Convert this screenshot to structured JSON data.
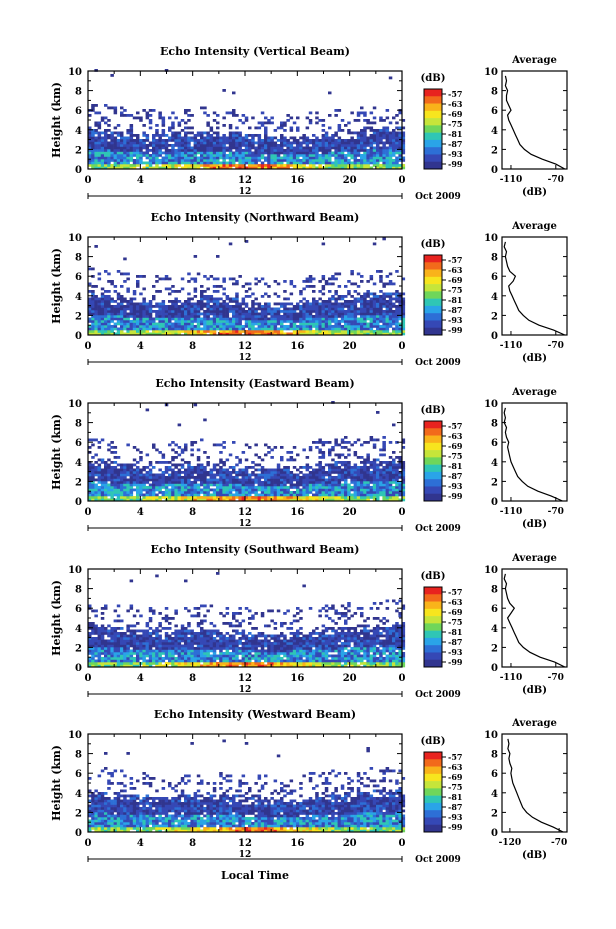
{
  "colorbar": {
    "unit": "(dB)",
    "labels": [
      "-57",
      "-63",
      "-69",
      "-75",
      "-81",
      "-87",
      "-93",
      "-99"
    ],
    "colors": [
      "#e8231f",
      "#f26a1b",
      "#f9b31a",
      "#f7e51e",
      "#c6e53a",
      "#6fd65a",
      "#2fc6b5",
      "#2aa4e8",
      "#2d6fd6",
      "#3548b5",
      "#31358f"
    ]
  },
  "panel_common": {
    "date_label": "Oct 2009",
    "noon_label": "12",
    "y_ticks": [
      "0",
      "2",
      "4",
      "6",
      "8",
      "10"
    ],
    "x_ticks": [
      "0",
      "4",
      "8",
      "12",
      "16",
      "20",
      "0"
    ]
  },
  "xlabel": "Local Time",
  "panels": [
    {
      "title": "Echo Intensity (Vertical Beam)",
      "ylabel": "Height (km)",
      "avg_title": "Average",
      "avg_xlabel": "(dB)",
      "avg_xticks": [
        "-110",
        "-70"
      ]
    },
    {
      "title": "Echo Intensity (Northward Beam)",
      "ylabel": "Height (km)",
      "avg_title": "Average",
      "avg_xlabel": "(dB)",
      "avg_xticks": [
        "-110",
        "-70"
      ]
    },
    {
      "title": "Echo Intensity (Eastward Beam)",
      "ylabel": "Height (km)",
      "avg_title": "Average",
      "avg_xlabel": "(dB)",
      "avg_xticks": [
        "-110",
        "-70"
      ]
    },
    {
      "title": "Echo Intensity (Southward Beam)",
      "ylabel": "Height (km)",
      "avg_title": "Average",
      "avg_xlabel": "(dB)",
      "avg_xticks": [
        "-110",
        "-70"
      ]
    },
    {
      "title": "Echo Intensity (Westward Beam)",
      "ylabel": "Height (km)",
      "avg_title": "Average",
      "avg_xlabel": "(dB)",
      "avg_xticks": [
        "-120",
        "-70"
      ]
    }
  ],
  "chart_data": [
    {
      "type": "heatmap",
      "title": "Echo Intensity (Vertical Beam)",
      "xlabel": "",
      "ylabel": "Height (km)",
      "xlim": [
        0,
        24
      ],
      "ylim": [
        0,
        10
      ],
      "colorbar_range": [
        -99,
        -57
      ],
      "colorbar_unit": "dB",
      "date": "Oct 2009",
      "echo_top_km": [
        4.2,
        4.0,
        3.8,
        3.6,
        3.5,
        3.5,
        3.6,
        3.7,
        3.8,
        3.8,
        3.7,
        3.6,
        3.5,
        3.4,
        3.3,
        3.2,
        3.2,
        3.3,
        3.4,
        3.5,
        3.6,
        3.8,
        4.0,
        4.1,
        4.2
      ],
      "average_profile": {
        "xlim": [
          -118,
          -60
        ],
        "height_km": [
          0,
          0.5,
          1,
          1.5,
          2,
          2.5,
          3,
          3.5,
          4,
          4.5,
          5,
          5.5,
          6,
          6.5,
          7,
          7.5,
          8,
          8.5,
          9,
          9.5
        ],
        "db": [
          -62,
          -70,
          -82,
          -92,
          -98,
          -102,
          -104,
          -106,
          -108,
          -110,
          -112,
          -113,
          -110,
          -112,
          -114,
          -114,
          -113,
          -115,
          -114,
          -115
        ]
      }
    },
    {
      "type": "heatmap",
      "title": "Echo Intensity (Northward Beam)",
      "xlabel": "",
      "ylabel": "Height (km)",
      "xlim": [
        0,
        24
      ],
      "ylim": [
        0,
        10
      ],
      "colorbar_range": [
        -99,
        -57
      ],
      "colorbar_unit": "dB",
      "date": "Oct 2009",
      "echo_top_km": [
        4.4,
        4.2,
        4.0,
        3.8,
        3.6,
        3.5,
        3.5,
        3.6,
        3.8,
        3.9,
        3.8,
        3.6,
        3.4,
        3.3,
        3.2,
        3.2,
        3.3,
        3.5,
        3.7,
        3.9,
        4.0,
        4.1,
        4.2,
        4.3,
        4.4
      ],
      "average_profile": {
        "xlim": [
          -118,
          -60
        ],
        "height_km": [
          0,
          0.5,
          1,
          1.5,
          2,
          2.5,
          3,
          3.5,
          4,
          4.5,
          5,
          5.5,
          6,
          6.5,
          7,
          7.5,
          8,
          8.5,
          9,
          9.5
        ],
        "db": [
          -62,
          -72,
          -85,
          -94,
          -99,
          -103,
          -105,
          -107,
          -109,
          -111,
          -112,
          -108,
          -106,
          -111,
          -113,
          -114,
          -115,
          -114,
          -116,
          -115
        ]
      }
    },
    {
      "type": "heatmap",
      "title": "Echo Intensity (Eastward Beam)",
      "xlabel": "",
      "ylabel": "Height (km)",
      "xlim": [
        0,
        24
      ],
      "ylim": [
        0,
        10
      ],
      "colorbar_range": [
        -99,
        -57
      ],
      "colorbar_unit": "dB",
      "date": "Oct 2009",
      "echo_top_km": [
        4.3,
        4.1,
        3.9,
        3.7,
        3.5,
        3.4,
        3.5,
        3.6,
        3.7,
        3.8,
        3.7,
        3.5,
        3.4,
        3.3,
        3.2,
        3.3,
        3.4,
        3.6,
        3.8,
        3.9,
        4.0,
        4.1,
        4.2,
        4.3,
        4.3
      ],
      "average_profile": {
        "xlim": [
          -118,
          -60
        ],
        "height_km": [
          0,
          0.5,
          1,
          1.5,
          2,
          2.5,
          3,
          3.5,
          4,
          4.5,
          5,
          5.5,
          6,
          6.5,
          7,
          7.5,
          8,
          8.5,
          9,
          9.5
        ],
        "db": [
          -64,
          -74,
          -86,
          -95,
          -100,
          -104,
          -106,
          -108,
          -110,
          -111,
          -112,
          -113,
          -112,
          -114,
          -115,
          -114,
          -116,
          -115,
          -116,
          -115
        ]
      }
    },
    {
      "type": "heatmap",
      "title": "Echo Intensity (Southward Beam)",
      "xlabel": "",
      "ylabel": "Height (km)",
      "xlim": [
        0,
        24
      ],
      "ylim": [
        0,
        10
      ],
      "colorbar_range": [
        -99,
        -57
      ],
      "colorbar_unit": "dB",
      "date": "Oct 2009",
      "echo_top_km": [
        4.4,
        4.2,
        4.0,
        3.8,
        3.7,
        3.6,
        3.6,
        3.7,
        3.8,
        3.8,
        3.7,
        3.6,
        3.5,
        3.4,
        3.4,
        3.4,
        3.5,
        3.6,
        3.8,
        3.9,
        4.0,
        4.1,
        4.2,
        4.3,
        4.4
      ],
      "average_profile": {
        "xlim": [
          -118,
          -60
        ],
        "height_km": [
          0,
          0.5,
          1,
          1.5,
          2,
          2.5,
          3,
          3.5,
          4,
          4.5,
          5,
          5.5,
          6,
          6.5,
          7,
          7.5,
          8,
          8.5,
          9,
          9.5
        ],
        "db": [
          -62,
          -71,
          -84,
          -93,
          -99,
          -103,
          -105,
          -107,
          -109,
          -111,
          -113,
          -110,
          -107,
          -111,
          -113,
          -114,
          -115,
          -114,
          -116,
          -115
        ]
      }
    },
    {
      "type": "heatmap",
      "title": "Echo Intensity (Westward Beam)",
      "xlabel": "Local Time",
      "ylabel": "Height (km)",
      "xlim": [
        0,
        24
      ],
      "ylim": [
        0,
        10
      ],
      "colorbar_range": [
        -99,
        -57
      ],
      "colorbar_unit": "dB",
      "date": "Oct 2009",
      "echo_top_km": [
        4.3,
        4.1,
        3.9,
        3.7,
        3.6,
        3.5,
        3.5,
        3.6,
        3.7,
        3.8,
        3.7,
        3.6,
        3.4,
        3.3,
        3.2,
        3.2,
        3.3,
        3.5,
        3.7,
        3.8,
        3.9,
        4.0,
        4.1,
        4.2,
        4.3
      ],
      "average_profile": {
        "xlim": [
          -128,
          -62
        ],
        "height_km": [
          0,
          0.5,
          1,
          1.5,
          2,
          2.5,
          3,
          3.5,
          4,
          4.5,
          5,
          5.5,
          6,
          6.5,
          7,
          7.5,
          8,
          8.5,
          9,
          9.5
        ],
        "db": [
          -66,
          -76,
          -88,
          -97,
          -103,
          -107,
          -109,
          -111,
          -113,
          -115,
          -117,
          -118,
          -119,
          -118,
          -120,
          -121,
          -120,
          -122,
          -121,
          -122
        ]
      }
    }
  ]
}
